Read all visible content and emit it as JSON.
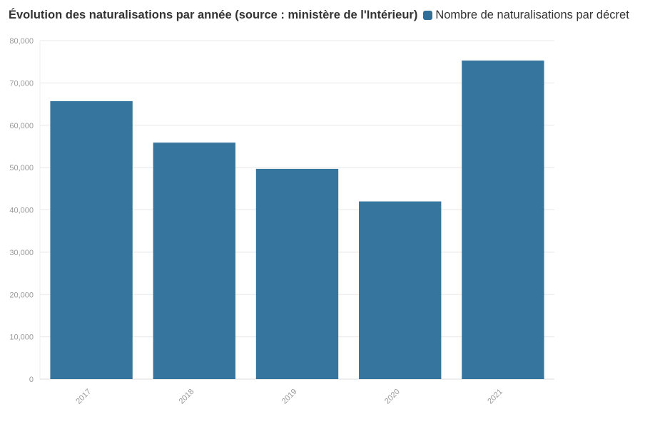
{
  "chart_data": {
    "type": "bar",
    "title": "Évolution des naturalisations par année (source : ministère de l'Intérieur)",
    "xlabel": "",
    "ylabel": "",
    "categories": [
      "2017",
      "2018",
      "2019",
      "2020",
      "2021"
    ],
    "series": [
      {
        "name": "Nombre de naturalisations par décret",
        "values": [
          65700,
          55900,
          49700,
          42000,
          75300
        ],
        "color": "#2e6f9a"
      }
    ],
    "ylim": [
      0,
      80000
    ],
    "yticks": [
      0,
      10000,
      20000,
      30000,
      40000,
      50000,
      60000,
      70000,
      80000
    ],
    "ytick_labels": [
      "0",
      "10,000",
      "20,000",
      "30,000",
      "40,000",
      "50,000",
      "60,000",
      "70,000",
      "80,000"
    ],
    "grid": true,
    "legend_position": "top"
  }
}
